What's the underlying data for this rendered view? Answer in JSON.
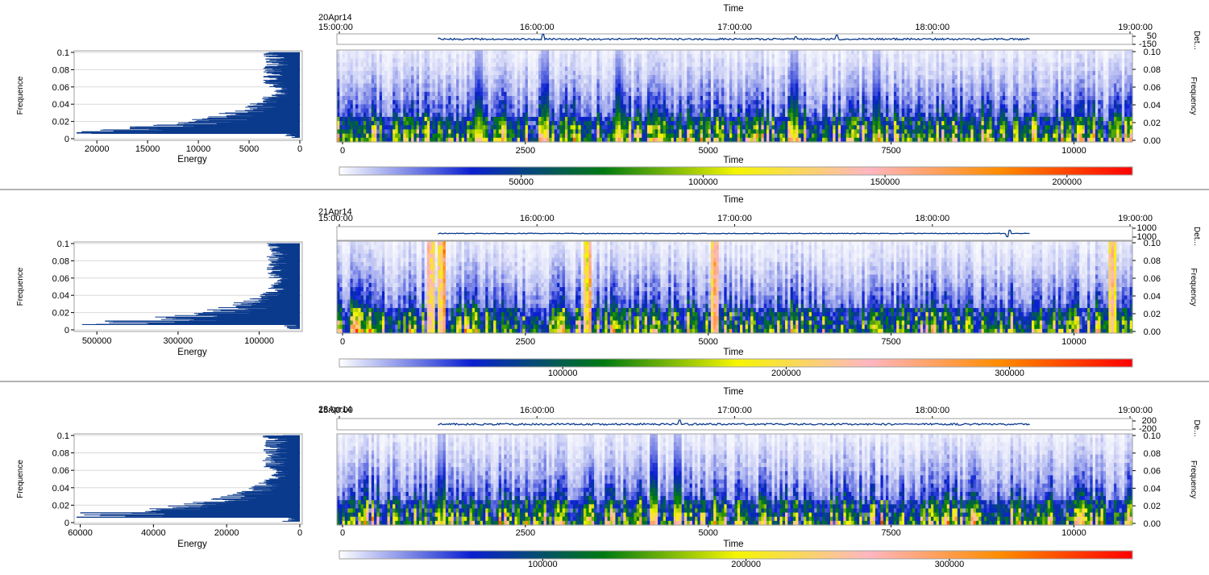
{
  "panels": [
    {
      "name": "panel-20apr14",
      "date_label": "20Apr14",
      "series_axis_label": "Det...",
      "series_ticks": [
        "50",
        "-150"
      ],
      "chart_data": [
        {
          "type": "bar",
          "orientation": "horizontal",
          "xlabel": "Energy",
          "ylabel": "Frequence",
          "xlim": [
            22000,
            0
          ],
          "ylim": [
            0,
            0.1
          ],
          "x_ticks": [
            20000,
            15000,
            10000,
            5000,
            0
          ],
          "y_ticks": [
            0,
            0.02,
            0.04,
            0.06,
            0.08,
            0.1
          ],
          "y_tick_labels": [
            "0",
            "0.02",
            "0.04",
            "0.06",
            "0.08",
            "0.1"
          ],
          "spectrum_peak": {
            "frequency": 0.008,
            "energy": 21500
          },
          "secondary_peaks": [
            {
              "frequency": 0.011,
              "energy": 14000
            },
            {
              "frequency": 0.015,
              "energy": 11500
            }
          ]
        },
        {
          "type": "line",
          "ylabel": "Det...",
          "x_range_time": [
            "15:00:00",
            "19:00:00"
          ],
          "time_ticks": [
            "15:00:00",
            "16:00:00",
            "17:00:00",
            "18:00:00",
            "19:00:00"
          ],
          "signal_time_span": [
            "15:30:00",
            "18:34:00"
          ],
          "y_ticks": [
            50,
            -150
          ]
        },
        {
          "type": "heatmap",
          "xlabel": "Time",
          "ylabel": "Frequency",
          "xlim": [
            0,
            10800
          ],
          "ylim": [
            0,
            0.1
          ],
          "x_ticks": [
            0,
            2500,
            5000,
            7500,
            10000
          ],
          "y_ticks": [
            0,
            0.02,
            0.04,
            0.06,
            0.08,
            0.1
          ],
          "y_tick_labels": [
            "0.00",
            "0.02",
            "0.04",
            "0.06",
            "0.08",
            "0.10"
          ],
          "color_scale": {
            "min": 0,
            "max": 218000,
            "ticks": [
              50000,
              100000,
              150000,
              200000
            ]
          },
          "hot_bands": [
            1900,
            2800,
            3800,
            6200,
            7300
          ]
        }
      ],
      "titles": {
        "time_top": "Time",
        "time_bottom": "Time"
      }
    },
    {
      "name": "panel-21apr14",
      "date_label": "21Apr14",
      "series_axis_label": "Det...",
      "series_ticks": [
        "1000",
        "-1000"
      ],
      "chart_data": [
        {
          "type": "bar",
          "orientation": "horizontal",
          "xlabel": "Energy",
          "ylabel": "Frequence",
          "xlim": [
            550000,
            0
          ],
          "ylim": [
            0,
            0.1
          ],
          "x_ticks": [
            500000,
            300000,
            100000
          ],
          "y_ticks": [
            0,
            0.02,
            0.04,
            0.06,
            0.08,
            0.1
          ],
          "y_tick_labels": [
            "0",
            "0.02",
            "0.04",
            "0.06",
            "0.08",
            "0.1"
          ],
          "spectrum_peak": {
            "frequency": 0.01,
            "energy": 480000
          },
          "secondary_peaks": [
            {
              "frequency": 0.014,
              "energy": 330000
            },
            {
              "frequency": 0.018,
              "energy": 250000
            }
          ]
        },
        {
          "type": "line",
          "ylabel": "Det...",
          "x_range_time": [
            "15:00:00",
            "19:00:00"
          ],
          "time_ticks": [
            "15:00:00",
            "16:00:00",
            "17:00:00",
            "18:00:00",
            "19:00:00"
          ],
          "signal_time_span": [
            "15:30:00",
            "18:34:00"
          ],
          "y_ticks": [
            1000,
            -1000
          ]
        },
        {
          "type": "heatmap",
          "xlabel": "Time",
          "ylabel": "Frequency",
          "xlim": [
            0,
            10800
          ],
          "ylim": [
            0,
            0.1
          ],
          "x_ticks": [
            0,
            2500,
            5000,
            7500,
            10000
          ],
          "y_ticks": [
            0,
            0.02,
            0.04,
            0.06,
            0.08,
            0.1
          ],
          "y_tick_labels": [
            "0.00",
            "0.02",
            "0.04",
            "0.06",
            "0.08",
            "0.10"
          ],
          "color_scale": {
            "min": 0,
            "max": 355000,
            "ticks": [
              100000,
              200000,
              300000
            ]
          },
          "hot_bands": [
            1250,
            1400,
            3400,
            5100,
            10500
          ]
        }
      ],
      "titles": {
        "time_top": "Time",
        "time_bottom": "Time"
      }
    },
    {
      "name": "panel-28apr14",
      "date_label": "28Apr14",
      "series_axis_label": "De...",
      "series_ticks": [
        "200",
        "-200"
      ],
      "chart_data": [
        {
          "type": "bar",
          "orientation": "horizontal",
          "xlabel": "Energy",
          "ylabel": "Frequence",
          "xlim": [
            61000,
            0
          ],
          "ylim": [
            0,
            0.1
          ],
          "x_ticks": [
            60000,
            40000,
            20000,
            0
          ],
          "y_ticks": [
            0,
            0.02,
            0.04,
            0.06,
            0.08,
            0.1
          ],
          "y_tick_labels": [
            "0",
            "0.02",
            "0.04",
            "0.06",
            "0.08",
            "0.1"
          ],
          "spectrum_peak": {
            "frequency": 0.011,
            "energy": 60000
          },
          "secondary_peaks": [
            {
              "frequency": 0.014,
              "energy": 38000
            },
            {
              "frequency": 0.018,
              "energy": 25000
            }
          ]
        },
        {
          "type": "line",
          "ylabel": "De...",
          "x_range_time": [
            "15:00:00",
            "19:00:00"
          ],
          "time_ticks": [
            "15:00:00",
            "16:00:00",
            "17:00:00",
            "18:00:00",
            "19:00:00"
          ],
          "signal_time_span": [
            "15:30:00",
            "18:34:00"
          ],
          "y_ticks": [
            200,
            -200
          ]
        },
        {
          "type": "heatmap",
          "xlabel": "Time",
          "ylabel": "Frequency",
          "xlim": [
            0,
            10800
          ],
          "ylim": [
            0,
            0.1
          ],
          "x_ticks": [
            0,
            2500,
            5000,
            7500,
            10000
          ],
          "y_ticks": [
            0,
            0.02,
            0.04,
            0.06,
            0.08,
            0.1
          ],
          "y_tick_labels": [
            "0.00",
            "0.02",
            "0.04",
            "0.06",
            "0.08",
            "0.10"
          ],
          "color_scale": {
            "min": 0,
            "max": 390000,
            "ticks": [
              100000,
              200000,
              300000
            ]
          },
          "hot_bands": [
            1400,
            4300,
            4600
          ]
        }
      ],
      "titles": {
        "time_top": "Time",
        "time_bottom": "Time"
      }
    }
  ],
  "colors": {
    "spectrum": "#0b3a8c",
    "grid": "#d9d9d9",
    "frame": "#a0a0a0",
    "divider": "#9a9a9a",
    "colormap": [
      "#ffffff",
      "#0a1fd0",
      "#007a10",
      "#f5f500",
      "#ffb6c1",
      "#ff8c00",
      "#ff0000"
    ]
  }
}
